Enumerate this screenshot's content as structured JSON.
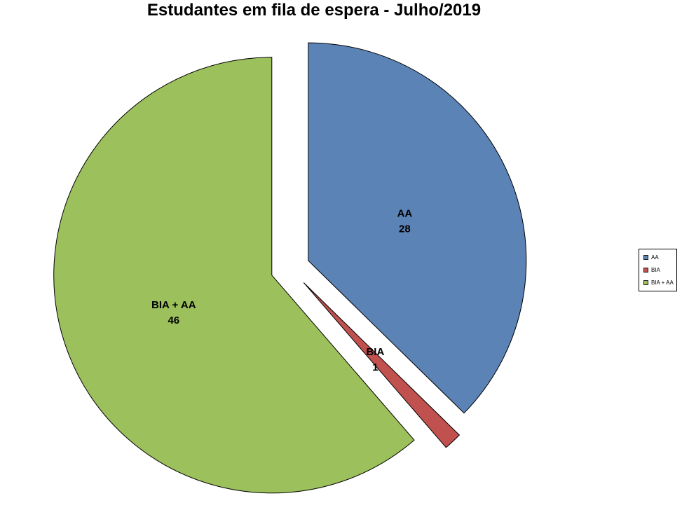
{
  "title": "Estudantes em fila de espera - Julho/2019",
  "chart_data": {
    "type": "pie",
    "title": "Estudantes em fila de espera - Julho/2019",
    "categories": [
      "AA",
      "BIA",
      "BIA + AA"
    ],
    "values": [
      28,
      1,
      46
    ],
    "total": 75,
    "slices": [
      {
        "label": "AA",
        "value": 28,
        "color": "#5B83B6"
      },
      {
        "label": "BIA",
        "value": 1,
        "color": "#C0514E"
      },
      {
        "label": "BIA + AA",
        "value": 46,
        "color": "#9CC05C"
      }
    ],
    "start_angle_deg": 0,
    "direction": "clockwise",
    "exploded": true,
    "slice_border_color": "#000000",
    "data_labels": "category and value inside slices",
    "legend_position": "right"
  },
  "legend": {
    "items": [
      {
        "label": "AA",
        "color": "#5B83B6"
      },
      {
        "label": "BIA",
        "color": "#C0514E"
      },
      {
        "label": "BIA + AA",
        "color": "#9CC05C"
      }
    ]
  }
}
